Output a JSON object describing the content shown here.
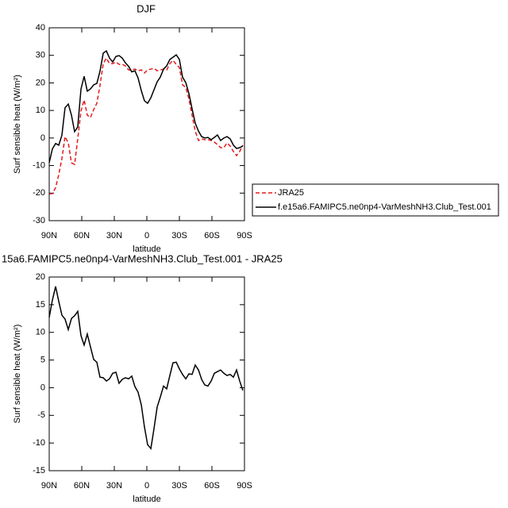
{
  "chart_data": [
    {
      "type": "line",
      "title": "DJF",
      "xlabel": "latitude",
      "ylabel": "Surf sensible heat (W/m²)",
      "x": [
        90,
        87.1,
        84.1,
        81.2,
        78.3,
        75.4,
        72.4,
        69.5,
        66.6,
        63.7,
        60.7,
        57.8,
        54.9,
        52,
        49,
        46.1,
        43.2,
        40.2,
        37.3,
        34.4,
        31.5,
        28.5,
        25.6,
        22.7,
        19.8,
        16.8,
        13.9,
        11,
        8.1,
        5.1,
        2.2,
        -0.7,
        -3.7,
        -6.6,
        -9.5,
        -12.4,
        -15.4,
        -18.3,
        -21.2,
        -24.1,
        -27.1,
        -30,
        -32.9,
        -35.9,
        -38.8,
        -41.7,
        -44.6,
        -47.6,
        -50.5,
        -53.4,
        -56.3,
        -59.3,
        -62.2,
        -65.1,
        -68,
        -71,
        -73.9,
        -76.8,
        -79.8,
        -82.7,
        -85.6,
        -88.5
      ],
      "series": [
        {
          "name": "JRA25",
          "color": "#e41a1c",
          "dash": true,
          "values": [
            -20.2,
            -20.2,
            -18,
            -13.3,
            -7.5,
            0.5,
            -1.8,
            -9,
            -9.6,
            -0.3,
            9.8,
            13.8,
            8.3,
            7.4,
            10.3,
            12.6,
            19,
            27,
            29,
            27,
            27,
            27.6,
            26.7,
            26.7,
            26.2,
            24.7,
            24.7,
            25,
            24.4,
            24.7,
            23.6,
            24.7,
            25,
            25.3,
            24.4,
            24.7,
            25,
            24.7,
            27,
            28.2,
            26.7,
            25.6,
            19.3,
            18.4,
            14.1,
            8.3,
            2.5,
            -0.9,
            -0.3,
            -0.6,
            -0.6,
            -0.9,
            -1.5,
            -2.4,
            -3.5,
            -3.5,
            -1.8,
            -2.9,
            -4.9,
            -6.4,
            -4.9,
            -2.6
          ]
        },
        {
          "name": "f.e15a6.FAMIPC5.ne0np4-VarMeshNH3.Club_Test.001",
          "color": "#000000",
          "dash": false,
          "values": [
            -9,
            -4,
            -2,
            -2.6,
            1,
            11,
            12.3,
            8.3,
            2.3,
            4,
            17.8,
            22.4,
            17,
            17.8,
            19.3,
            19.8,
            24.2,
            30.8,
            31.6,
            29,
            27.6,
            29.6,
            29.9,
            29,
            27.3,
            26,
            24,
            24.4,
            21.8,
            17.2,
            13.5,
            12.6,
            14.6,
            17.5,
            20.4,
            22.1,
            25,
            26.2,
            28.5,
            29.3,
            30.2,
            28.5,
            22.1,
            20.1,
            16.1,
            10.6,
            5.4,
            2.5,
            0.5,
            0,
            0.2,
            -0.6,
            0.2,
            1.1,
            -0.9,
            0,
            0.5,
            -0.3,
            -2.6,
            -3.8,
            -3.5,
            -2.9
          ]
        }
      ],
      "xlim": [
        90,
        -90
      ],
      "xticks": [
        {
          "value": 90,
          "label": "90N"
        },
        {
          "value": 60,
          "label": "60N"
        },
        {
          "value": 30,
          "label": "30N"
        },
        0,
        {
          "value": -30,
          "label": "30S"
        },
        {
          "value": -60,
          "label": "60S"
        },
        {
          "value": -90,
          "label": "90S"
        }
      ],
      "ylim": [
        -30,
        40
      ],
      "yticks": [
        -30,
        -20,
        -10,
        0,
        10,
        20,
        30,
        40
      ]
    },
    {
      "type": "line",
      "title": "15a6.FAMIPC5.ne0np4-VarMeshNH3.Club_Test.001 - JRA25",
      "xlabel": "latitude",
      "ylabel": "Surf sensible heat (W/m²)",
      "x": [
        90,
        87.1,
        84.1,
        81.2,
        78.3,
        75.4,
        72.4,
        69.5,
        66.6,
        63.7,
        60.7,
        57.8,
        54.9,
        52,
        49,
        46.1,
        43.2,
        40.2,
        37.3,
        34.4,
        31.5,
        28.5,
        25.6,
        22.7,
        19.8,
        16.8,
        13.9,
        11,
        8.1,
        5.1,
        2.2,
        -0.7,
        -3.7,
        -6.6,
        -9.5,
        -12.4,
        -15.4,
        -18.3,
        -21.2,
        -24.1,
        -27.1,
        -30,
        -32.9,
        -35.9,
        -38.8,
        -41.7,
        -44.6,
        -47.6,
        -50.5,
        -53.4,
        -56.3,
        -59.3,
        -62.2,
        -65.1,
        -68,
        -71,
        -73.9,
        -76.8,
        -79.8,
        -82.7,
        -85.6,
        -88.5
      ],
      "color": "#000000",
      "values": [
        12.7,
        15.8,
        18.3,
        15.6,
        13.1,
        12.4,
        10.5,
        12.5,
        13,
        13.8,
        9.4,
        7.7,
        9.7,
        7.4,
        5.1,
        4.6,
        1.9,
        1.8,
        1.2,
        1.6,
        2.6,
        2.8,
        0.8,
        1.5,
        1.8,
        1.6,
        2.1,
        0.2,
        -0.8,
        -3.1,
        -7.1,
        -10.3,
        -11,
        -7.4,
        -3.5,
        -1.7,
        0.3,
        -0.2,
        2.2,
        4.5,
        4.6,
        3.4,
        2.4,
        1.6,
        2.5,
        2.4,
        4.1,
        3.2,
        1.5,
        0.5,
        0.3,
        1.2,
        2.6,
        2.9,
        3.2,
        2.6,
        2.2,
        2.4,
        1.9,
        3.2,
        1.2,
        -0.5
      ],
      "xlim": [
        90,
        -90
      ],
      "xticks": [
        {
          "value": 90,
          "label": "90N"
        },
        {
          "value": 60,
          "label": "60N"
        },
        {
          "value": 30,
          "label": "30N"
        },
        0,
        {
          "value": -30,
          "label": "30S"
        },
        {
          "value": -60,
          "label": "60S"
        },
        {
          "value": -90,
          "label": "90S"
        }
      ],
      "ylim": [
        -15,
        20
      ],
      "yticks": [
        -15,
        -10,
        -5,
        0,
        5,
        10,
        15,
        20
      ]
    }
  ]
}
